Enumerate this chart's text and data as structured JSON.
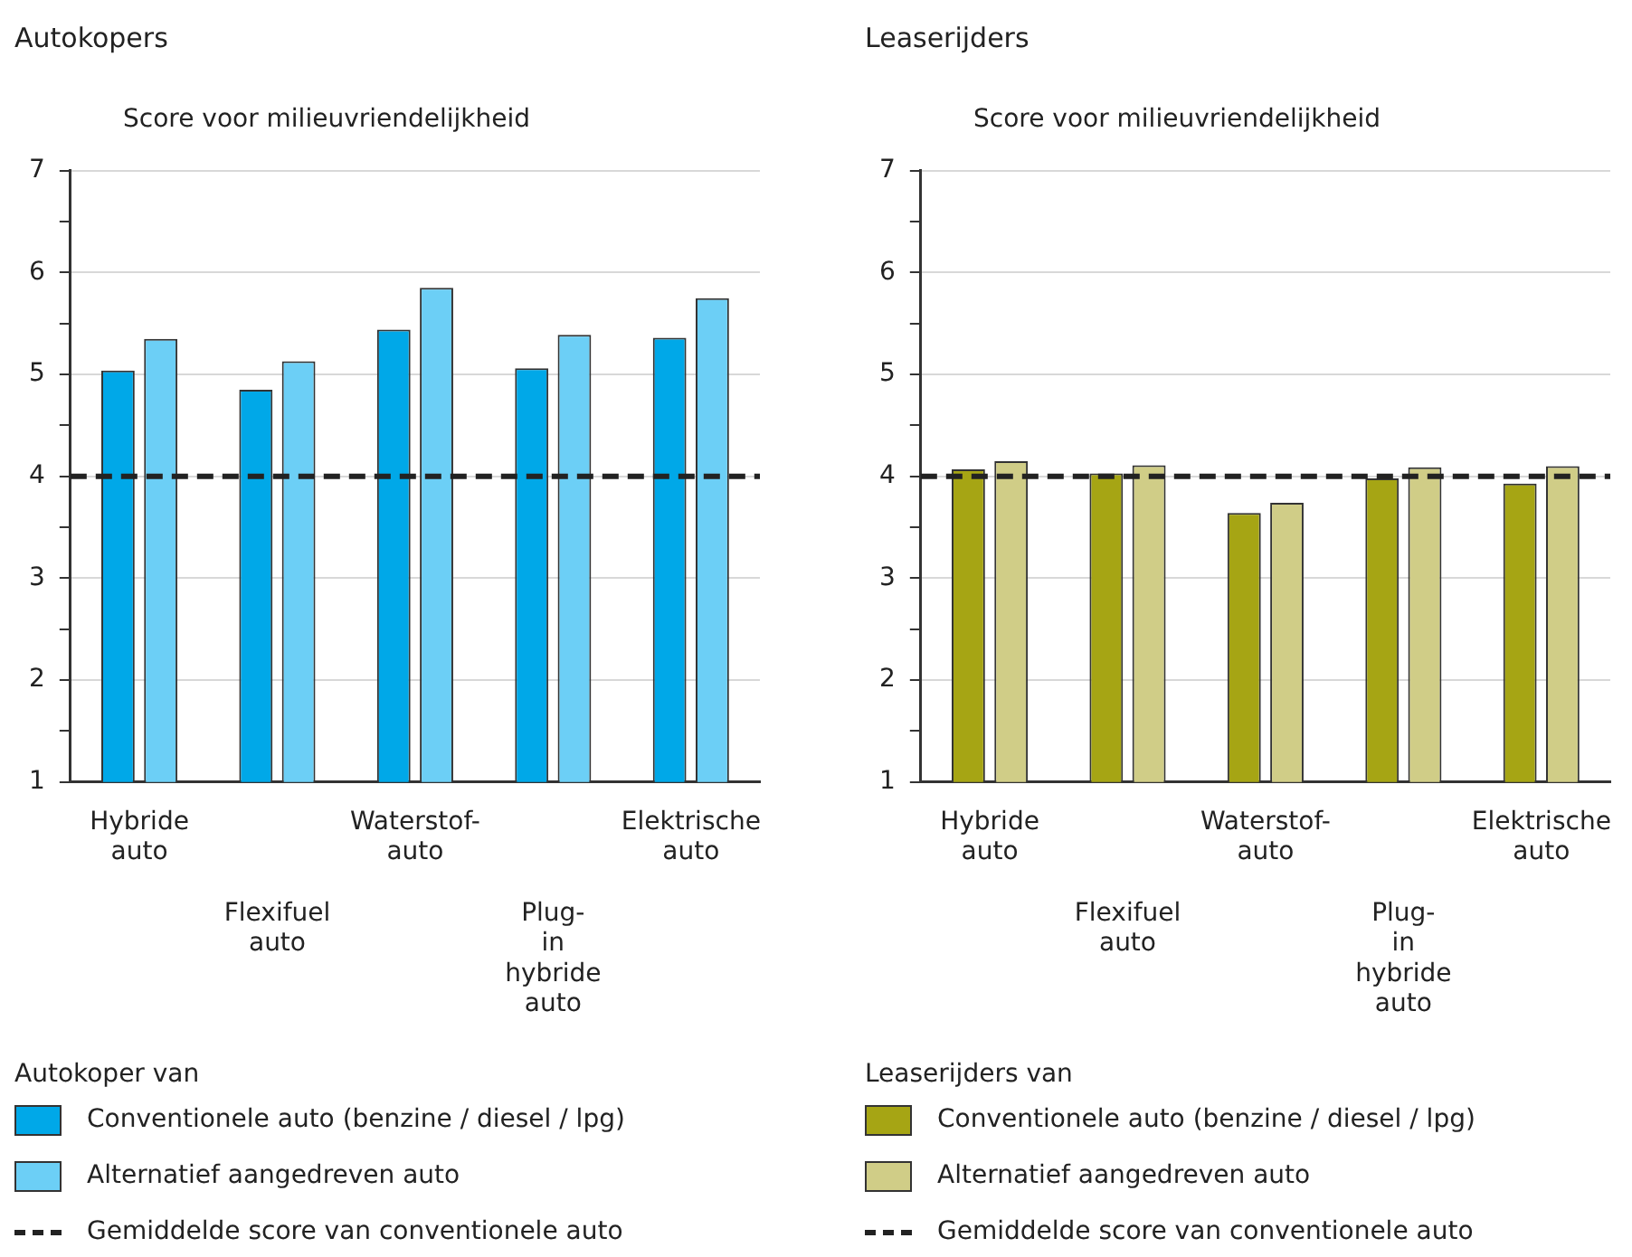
{
  "chart_data": [
    {
      "type": "bar",
      "title": "Autokopers",
      "ylabel": "Score voor milieuvriendelijkheid",
      "legend_title": "Autokoper van",
      "categories": [
        "Hybride auto",
        "Flexifuel auto",
        "Waterstof-auto",
        "Plug-in hybride auto",
        "Elektrische auto"
      ],
      "series": [
        {
          "name": "Conventionele auto (benzine / diesel / lpg)",
          "color": "#00a8e8",
          "values": [
            5.04,
            4.85,
            5.44,
            5.06,
            5.36
          ]
        },
        {
          "name": "Alternatief aangedreven auto",
          "color": "#6ccff6",
          "values": [
            5.35,
            5.13,
            5.85,
            5.39,
            5.75
          ]
        }
      ],
      "ylim": [
        1,
        7
      ],
      "yticks": [
        1,
        {
          "value": 1.5,
          "label": null
        },
        2,
        {
          "value": 2.5,
          "label": null
        },
        3,
        {
          "value": 3.5,
          "label": null
        },
        4,
        {
          "value": 4.5,
          "label": null
        },
        5,
        {
          "value": 5.5,
          "label": null
        },
        6,
        {
          "value": 6.5,
          "label": null
        },
        7
      ],
      "grid": "y",
      "legend": "bottom",
      "ref_lines": [
        {
          "axis": "y",
          "value": 4,
          "label": "Gemiddelde score van conventionele auto",
          "color": "#222222",
          "line_style": "dashed"
        }
      ]
    },
    {
      "type": "bar",
      "title": "Leaserijders",
      "ylabel": "Score voor milieuvriendelijkheid",
      "legend_title": "Leaserijders van",
      "categories": [
        "Hybride auto",
        "Flexifuel auto",
        "Waterstof-auto",
        "Plug-in hybride auto",
        "Elektrische auto"
      ],
      "series": [
        {
          "name": "Conventionele auto (benzine / diesel / lpg)",
          "color": "#a6a514",
          "values": [
            4.07,
            4.03,
            3.64,
            3.98,
            3.93
          ]
        },
        {
          "name": "Alternatief aangedreven auto",
          "color": "#d0cd87",
          "values": [
            4.15,
            4.11,
            3.74,
            4.09,
            4.1
          ]
        }
      ],
      "ylim": [
        1,
        7
      ],
      "yticks": [
        1,
        {
          "value": 1.5,
          "label": null
        },
        2,
        {
          "value": 2.5,
          "label": null
        },
        3,
        {
          "value": 3.5,
          "label": null
        },
        4,
        {
          "value": 4.5,
          "label": null
        },
        5,
        {
          "value": 5.5,
          "label": null
        },
        6,
        {
          "value": 6.5,
          "label": null
        },
        7
      ],
      "grid": "y",
      "legend": "bottom",
      "ref_lines": [
        {
          "axis": "y",
          "value": 4,
          "label": "Gemiddelde score van conventionele auto",
          "color": "#222222",
          "line_style": "dashed"
        }
      ]
    }
  ]
}
